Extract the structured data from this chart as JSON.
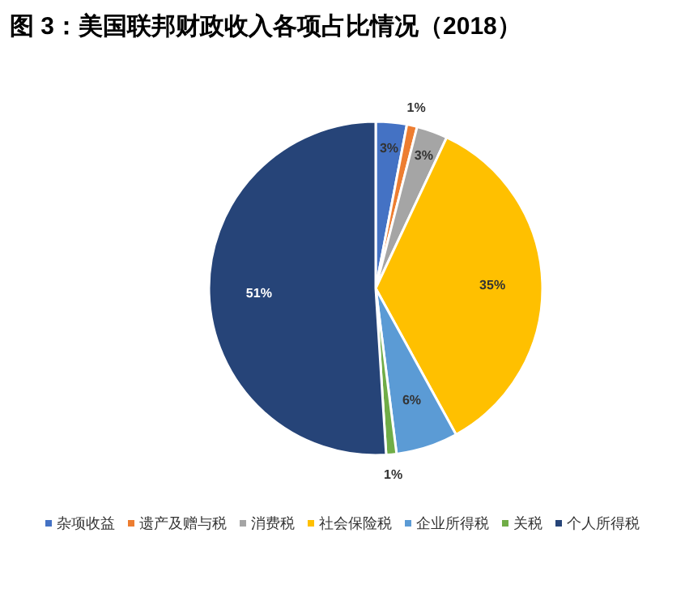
{
  "chart_data": {
    "type": "pie",
    "title": "图 3：美国联邦财政收入各项占比情况（2018）",
    "categories": [
      "杂项收益",
      "遗产及赠与税",
      "消费税",
      "社会保险税",
      "企业所得税",
      "关税",
      "个人所得税"
    ],
    "values": [
      3,
      1,
      3,
      35,
      6,
      1,
      51
    ],
    "colors": [
      "#4472c4",
      "#ed7d31",
      "#a5a5a5",
      "#ffc000",
      "#5b9bd5",
      "#70ad47",
      "#264478"
    ],
    "value_labels": [
      "3%",
      "1%",
      "3%",
      "35%",
      "6%",
      "1%",
      "51%"
    ],
    "legend": "bottom"
  }
}
